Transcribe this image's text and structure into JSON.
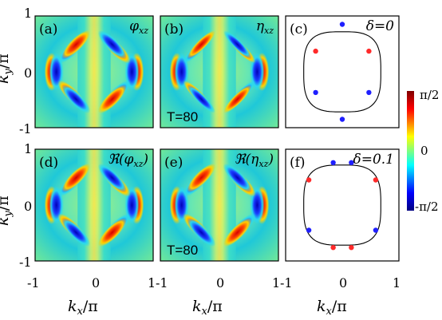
{
  "figure": {
    "ylabel_main": "k",
    "ylabel_sub": "y",
    "ylabel_tail": "/π",
    "xlabel_main": "k",
    "xlabel_sub": "x",
    "xlabel_tail": "/π"
  },
  "colorbar": {
    "ticks": [
      "π/2",
      "0",
      "-π/2"
    ],
    "colormap": [
      "#00007f",
      "#0000ff",
      "#00ffff",
      "#7fff7f",
      "#ffff00",
      "#ff0000",
      "#7f0000"
    ]
  },
  "panels": [
    {
      "id": "a",
      "label": "(a)",
      "title": "φ",
      "title_sub": "xz",
      "temp": ""
    },
    {
      "id": "b",
      "label": "(b)",
      "title": "η",
      "title_sub": "xz",
      "temp": "T=80"
    },
    {
      "id": "c",
      "label": "(c)",
      "title": "δ=0",
      "title_sub": "",
      "temp": ""
    },
    {
      "id": "d",
      "label": "(d)",
      "title": "ℜ(φ",
      "title_sub": "xz",
      "title_tail": ")",
      "temp": ""
    },
    {
      "id": "e",
      "label": "(e)",
      "title": "ℜ(η",
      "title_sub": "xz",
      "title_tail": ")",
      "temp": "T=80"
    },
    {
      "id": "f",
      "label": "(f)",
      "title": "δ=0.1",
      "title_sub": "",
      "temp": ""
    }
  ],
  "axis_ticks": {
    "y": [
      "1",
      "0",
      "-1"
    ],
    "x": [
      "-1",
      "0",
      "1"
    ]
  },
  "chart_data": [
    {
      "type": "heatmap",
      "panel": "a",
      "x_range": [
        -1,
        1
      ],
      "y_range": [
        -1,
        1
      ],
      "z_range": [
        "-π/2",
        "π/2"
      ]
    },
    {
      "type": "heatmap",
      "panel": "b",
      "x_range": [
        -1,
        1
      ],
      "y_range": [
        -1,
        1
      ],
      "z_range": [
        "-π/2",
        "π/2"
      ]
    },
    {
      "type": "scatter",
      "panel": "c",
      "x_range": [
        -1,
        1
      ],
      "y_range": [
        -1,
        1
      ],
      "series": [
        {
          "color": "#ff2a2a",
          "points": [
            [
              -0.47,
              0.37
            ],
            [
              0.47,
              0.37
            ],
            [
              -0.47,
              -0.37
            ],
            [
              0.47,
              -0.37
            ],
            [
              0.0,
              0.85
            ],
            [
              0.0,
              -0.85
            ]
          ]
        },
        {
          "color": "#1f1fff",
          "points": [
            [
              -0.47,
              -0.37
            ],
            [
              0.47,
              -0.37
            ],
            [
              0.0,
              0.85
            ],
            [
              0.0,
              -0.85
            ]
          ]
        }
      ]
    },
    {
      "type": "heatmap",
      "panel": "d",
      "x_range": [
        -1,
        1
      ],
      "y_range": [
        -1,
        1
      ],
      "z_range": [
        "-π/2",
        "π/2"
      ]
    },
    {
      "type": "heatmap",
      "panel": "e",
      "x_range": [
        -1,
        1
      ],
      "y_range": [
        -1,
        1
      ],
      "z_range": [
        "-π/2",
        "π/2"
      ]
    },
    {
      "type": "scatter",
      "panel": "f",
      "x_range": [
        -1,
        1
      ],
      "y_range": [
        -1,
        1
      ],
      "series": [
        {
          "color": "#ff2a2a",
          "points": [
            [
              -0.59,
              0.45
            ],
            [
              0.59,
              0.45
            ],
            [
              -0.16,
              0.76
            ],
            [
              0.16,
              0.76
            ],
            [
              -0.59,
              -0.45
            ],
            [
              0.59,
              -0.45
            ],
            [
              -0.16,
              -0.76
            ],
            [
              0.16,
              -0.76
            ]
          ]
        },
        {
          "color": "#1f1fff",
          "points": [
            [
              -0.59,
              -0.45
            ],
            [
              0.59,
              -0.45
            ],
            [
              -0.16,
              0.76
            ],
            [
              0.16,
              0.76
            ]
          ]
        }
      ]
    }
  ]
}
